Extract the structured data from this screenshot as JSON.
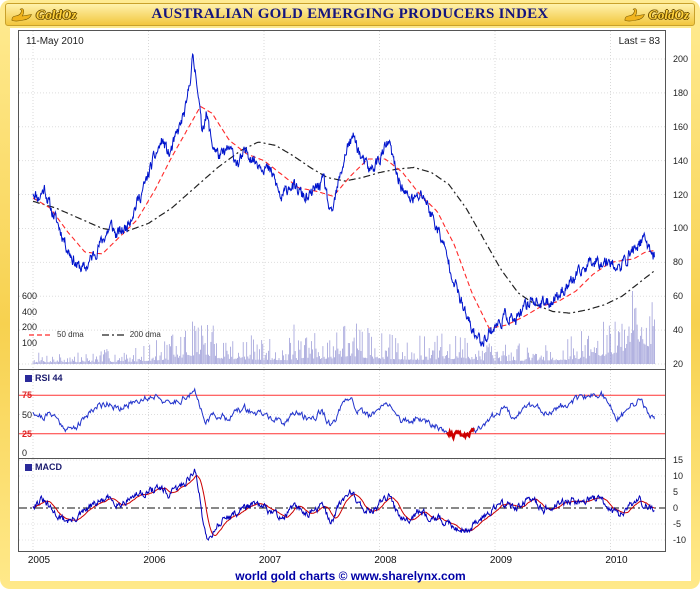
{
  "header": {
    "title": "AUSTRALIAN GOLD EMERGING PRODUCERS INDEX",
    "logo_text": "GoldOz"
  },
  "chart": {
    "date_label": "11-May 2010",
    "last_label": "Last = 83",
    "rsi_label": "RSI 44",
    "macd_label": "MACD"
  },
  "footer": {
    "text": "world gold charts © www.sharelynx.com"
  },
  "colors": {
    "price": "#0014cc",
    "dma50": "#ff2a2a",
    "dma200": "#222222",
    "rsi": "#2233cc",
    "macd": "#0000bb",
    "signal": "#cc0000",
    "band": "#ff3333",
    "volume": "#9f9fd9",
    "gold": "#f6d44d",
    "title_text": "#14147e"
  },
  "chart_data": {
    "type": "line",
    "title": "AUSTRALIAN GOLD EMERGING PRODUCERS INDEX",
    "as_of": "11-May 2010",
    "last_value": 83,
    "x_range": [
      2005.0,
      2010.42
    ],
    "x_ticks": [
      2005,
      2006,
      2007,
      2008,
      2009,
      2010
    ],
    "price_axis": {
      "min": 20,
      "max": 200,
      "ticks": [
        20,
        40,
        60,
        80,
        100,
        120,
        140,
        160,
        180,
        200
      ]
    },
    "legend": [
      {
        "label": "50 dma",
        "color": "#ff2a2a",
        "dash": "5,3"
      },
      {
        "label": "200 dma",
        "color": "#222222",
        "dash": "7,3,2,3"
      }
    ],
    "price": {
      "x": [
        2005.0,
        2005.05,
        2005.1,
        2005.15,
        2005.22,
        2005.3,
        2005.38,
        2005.45,
        2005.52,
        2005.6,
        2005.68,
        2005.72,
        2005.8,
        2005.88,
        2005.96,
        2006.04,
        2006.12,
        2006.18,
        2006.26,
        2006.33,
        2006.38,
        2006.42,
        2006.46,
        2006.5,
        2006.55,
        2006.62,
        2006.7,
        2006.78,
        2006.85,
        2006.92,
        2007.0,
        2007.08,
        2007.15,
        2007.22,
        2007.3,
        2007.38,
        2007.45,
        2007.52,
        2007.58,
        2007.65,
        2007.72,
        2007.78,
        2007.85,
        2007.92,
        2008.0,
        2008.08,
        2008.15,
        2008.22,
        2008.3,
        2008.38,
        2008.45,
        2008.52,
        2008.6,
        2008.68,
        2008.75,
        2008.82,
        2008.88,
        2008.95,
        2009.02,
        2009.1,
        2009.18,
        2009.25,
        2009.32,
        2009.4,
        2009.48,
        2009.55,
        2009.62,
        2009.7,
        2009.78,
        2009.85,
        2009.92,
        2010.0,
        2010.06,
        2010.12,
        2010.2,
        2010.28,
        2010.33,
        2010.38
      ],
      "y": [
        122,
        118,
        124,
        112,
        102,
        88,
        78,
        76,
        84,
        93,
        102,
        96,
        100,
        112,
        124,
        140,
        152,
        143,
        158,
        172,
        200,
        188,
        158,
        168,
        150,
        142,
        147,
        138,
        146,
        140,
        137,
        131,
        117,
        126,
        122,
        117,
        124,
        128,
        106,
        128,
        148,
        154,
        140,
        134,
        141,
        151,
        132,
        120,
        117,
        120,
        108,
        97,
        80,
        62,
        48,
        38,
        33,
        39,
        43,
        49,
        45,
        52,
        59,
        55,
        57,
        61,
        66,
        71,
        77,
        82,
        80,
        82,
        75,
        80,
        88,
        93,
        90,
        83
      ]
    },
    "dma50": {
      "x": [
        2005.0,
        2005.15,
        2005.3,
        2005.45,
        2005.6,
        2005.75,
        2005.9,
        2006.05,
        2006.2,
        2006.35,
        2006.45,
        2006.55,
        2006.7,
        2006.85,
        2007.0,
        2007.15,
        2007.3,
        2007.45,
        2007.6,
        2007.75,
        2007.9,
        2008.05,
        2008.2,
        2008.35,
        2008.5,
        2008.65,
        2008.8,
        2008.95,
        2009.1,
        2009.25,
        2009.4,
        2009.55,
        2009.7,
        2009.85,
        2010.0,
        2010.1,
        2010.2,
        2010.3,
        2010.38
      ],
      "y": [
        118,
        112,
        98,
        86,
        85,
        95,
        105,
        122,
        142,
        160,
        172,
        168,
        152,
        144,
        140,
        132,
        124,
        122,
        119,
        131,
        141,
        141,
        133,
        120,
        110,
        90,
        62,
        41,
        43,
        48,
        54,
        57,
        63,
        73,
        80,
        81,
        82,
        86,
        87
      ]
    },
    "dma200": {
      "x": [
        2005.0,
        2005.2,
        2005.4,
        2005.6,
        2005.8,
        2006.0,
        2006.2,
        2006.4,
        2006.6,
        2006.8,
        2006.95,
        2007.1,
        2007.25,
        2007.4,
        2007.55,
        2007.7,
        2007.85,
        2008.0,
        2008.15,
        2008.3,
        2008.45,
        2008.6,
        2008.75,
        2008.9,
        2009.05,
        2009.2,
        2009.35,
        2009.5,
        2009.65,
        2009.8,
        2009.95,
        2010.1,
        2010.25,
        2010.38
      ],
      "y": [
        116,
        112,
        106,
        100,
        98,
        103,
        112,
        124,
        136,
        146,
        151,
        149,
        143,
        136,
        130,
        128,
        130,
        133,
        135,
        136,
        133,
        126,
        112,
        94,
        76,
        62,
        55,
        51,
        50,
        52,
        55,
        60,
        68,
        75
      ]
    },
    "volume": {
      "ticks": [
        600,
        400,
        200,
        100
      ],
      "x": [
        2005.0,
        2005.2,
        2005.4,
        2005.6,
        2005.8,
        2006.0,
        2006.2,
        2006.35,
        2006.45,
        2006.6,
        2006.8,
        2007.0,
        2007.2,
        2007.4,
        2007.6,
        2007.75,
        2007.9,
        2008.0,
        2008.2,
        2008.4,
        2008.6,
        2008.8,
        2009.0,
        2009.2,
        2009.4,
        2009.6,
        2009.8,
        2010.0,
        2010.1,
        2010.2,
        2010.3,
        2010.38
      ],
      "v": [
        25,
        30,
        28,
        35,
        30,
        50,
        70,
        120,
        160,
        90,
        70,
        65,
        60,
        70,
        90,
        130,
        90,
        80,
        70,
        65,
        80,
        70,
        45,
        50,
        55,
        60,
        90,
        140,
        180,
        420,
        300,
        250
      ]
    },
    "rsi": {
      "current": 44,
      "ticks": [
        75,
        50,
        25,
        0
      ],
      "bands": [
        75,
        25
      ],
      "oversold_x": [
        2008.58,
        2008.82
      ],
      "x": [
        2005.0,
        2005.08,
        2005.17,
        2005.25,
        2005.33,
        2005.42,
        2005.5,
        2005.58,
        2005.67,
        2005.75,
        2005.83,
        2005.92,
        2006.0,
        2006.08,
        2006.17,
        2006.25,
        2006.33,
        2006.4,
        2006.5,
        2006.58,
        2006.67,
        2006.75,
        2006.83,
        2006.92,
        2007.0,
        2007.08,
        2007.17,
        2007.25,
        2007.33,
        2007.42,
        2007.5,
        2007.58,
        2007.67,
        2007.75,
        2007.83,
        2007.92,
        2008.0,
        2008.08,
        2008.17,
        2008.25,
        2008.33,
        2008.42,
        2008.5,
        2008.58,
        2008.67,
        2008.75,
        2008.83,
        2008.92,
        2009.0,
        2009.08,
        2009.17,
        2009.25,
        2009.33,
        2009.42,
        2009.5,
        2009.58,
        2009.67,
        2009.75,
        2009.83,
        2009.92,
        2010.0,
        2010.08,
        2010.17,
        2010.25,
        2010.33,
        2010.38
      ],
      "y": [
        55,
        46,
        52,
        36,
        30,
        40,
        56,
        62,
        66,
        54,
        64,
        70,
        72,
        76,
        62,
        68,
        74,
        78,
        42,
        50,
        46,
        52,
        58,
        52,
        50,
        44,
        36,
        54,
        48,
        44,
        56,
        33,
        58,
        72,
        52,
        48,
        56,
        66,
        44,
        40,
        46,
        40,
        36,
        28,
        22,
        24,
        30,
        40,
        50,
        58,
        48,
        58,
        64,
        52,
        56,
        62,
        68,
        70,
        74,
        78,
        58,
        44,
        60,
        68,
        52,
        44
      ]
    },
    "macd": {
      "ticks": [
        15,
        10,
        5,
        0,
        -5,
        -10
      ],
      "x": [
        2005.0,
        2005.08,
        2005.17,
        2005.25,
        2005.33,
        2005.42,
        2005.5,
        2005.58,
        2005.67,
        2005.75,
        2005.83,
        2005.92,
        2006.0,
        2006.08,
        2006.17,
        2006.25,
        2006.33,
        2006.4,
        2006.44,
        2006.48,
        2006.52,
        2006.58,
        2006.67,
        2006.75,
        2006.83,
        2006.92,
        2007.0,
        2007.08,
        2007.17,
        2007.25,
        2007.33,
        2007.42,
        2007.5,
        2007.58,
        2007.67,
        2007.75,
        2007.83,
        2007.92,
        2008.0,
        2008.08,
        2008.17,
        2008.25,
        2008.33,
        2008.42,
        2008.5,
        2008.58,
        2008.67,
        2008.75,
        2008.83,
        2008.92,
        2009.0,
        2009.08,
        2009.17,
        2009.25,
        2009.33,
        2009.42,
        2009.5,
        2009.58,
        2009.67,
        2009.75,
        2009.83,
        2009.92,
        2010.0,
        2010.08,
        2010.17,
        2010.25,
        2010.33,
        2010.38
      ],
      "y": [
        1,
        2.5,
        -1,
        -3.5,
        -4,
        -2,
        0.5,
        2,
        3,
        1,
        3,
        4.5,
        5,
        6.5,
        4,
        6,
        8.5,
        12,
        4,
        -6,
        -10,
        -6,
        -3,
        -2,
        0.5,
        1,
        0,
        -1.5,
        -3,
        0.5,
        -1,
        -1.5,
        1,
        -4.5,
        2,
        5.5,
        1,
        -1.5,
        1.5,
        3.5,
        -2,
        -3.5,
        -1,
        -2.5,
        -3,
        -5,
        -6,
        -7,
        -5,
        -2,
        0.5,
        1.5,
        0,
        1.5,
        2.5,
        -0.5,
        0.5,
        1.5,
        2.5,
        2,
        3,
        2.5,
        -0.5,
        -2.5,
        1,
        2.5,
        0,
        -1
      ]
    }
  }
}
